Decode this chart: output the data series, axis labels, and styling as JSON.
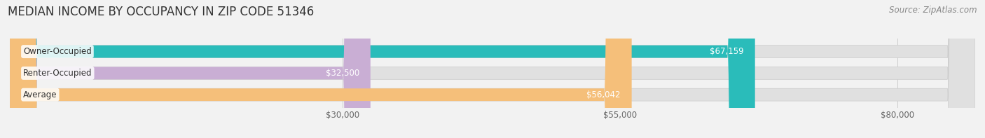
{
  "title": "MEDIAN INCOME BY OCCUPANCY IN ZIP CODE 51346",
  "source": "Source: ZipAtlas.com",
  "categories": [
    "Owner-Occupied",
    "Renter-Occupied",
    "Average"
  ],
  "values": [
    67159,
    32500,
    56042
  ],
  "bar_colors": [
    "#2abcba",
    "#c9aed4",
    "#f5bf7a"
  ],
  "bar_labels": [
    "$67,159",
    "$32,500",
    "$56,042"
  ],
  "x_ticks": [
    30000,
    55000,
    80000
  ],
  "x_tick_labels": [
    "$30,000",
    "$55,000",
    "$80,000"
  ],
  "xlim_max": 87000,
  "background_color": "#f2f2f2",
  "bar_bg_color": "#e0e0e0",
  "title_fontsize": 12,
  "source_fontsize": 8.5,
  "label_fontsize": 8.5,
  "cat_fontsize": 8.5,
  "tick_fontsize": 8.5,
  "bar_height": 0.58
}
